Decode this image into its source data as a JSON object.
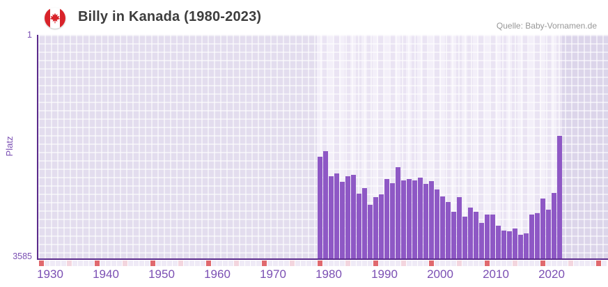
{
  "header": {
    "title": "Billy in Kanada (1980-2023)",
    "source": "Quelle: Baby-Vornamen.de"
  },
  "y_axis": {
    "label": "Platz",
    "top_tick": "1",
    "bottom_tick": "3585"
  },
  "x_axis": {
    "decade_labels": [
      "1930",
      "1940",
      "1950",
      "1960",
      "1970",
      "1980",
      "1990",
      "2000",
      "2010",
      "2020"
    ]
  },
  "colors": {
    "bar": "#8e58c5",
    "axis": "#5b2b8c",
    "axis_text": "#7b4fb3",
    "title_text": "#3d3d3d",
    "source_text": "#979797",
    "bg_default": "#e3ddee",
    "bg_data_light": "#f3eff9",
    "bg_data_dark": "#eae4f3",
    "bg_future": "#dcd5ea",
    "tick_decade": "#e0696e",
    "tick_half_decade": "#f3d5de",
    "tick_year": "#efeaf6",
    "flag_red": "#d8232a"
  },
  "chart_data": {
    "type": "bar",
    "title": "Billy in Kanada (1980-2023)",
    "xlabel": "",
    "ylabel": "Platz",
    "y_inverted": true,
    "ylim": [
      1,
      3585
    ],
    "x_drawn_range": [
      1930,
      2031
    ],
    "highlight_period": [
      1980,
      2023
    ],
    "grid": true,
    "legend_position": "none",
    "categories": [
      1980,
      1981,
      1982,
      1983,
      1984,
      1985,
      1986,
      1987,
      1988,
      1989,
      1990,
      1991,
      1992,
      1993,
      1994,
      1995,
      1996,
      1997,
      1998,
      1999,
      2000,
      2001,
      2002,
      2003,
      2004,
      2005,
      2006,
      2007,
      2008,
      2009,
      2010,
      2011,
      2012,
      2013,
      2014,
      2015,
      2016,
      2017,
      2018,
      2019,
      2020,
      2021,
      2022,
      2023
    ],
    "values": [
      1955,
      1866,
      2268,
      2223,
      2357,
      2268,
      2245,
      2547,
      2457,
      2725,
      2602,
      2558,
      2312,
      2379,
      2123,
      2335,
      2312,
      2335,
      2290,
      2390,
      2346,
      2480,
      2592,
      2681,
      2837,
      2602,
      2915,
      2770,
      2837,
      3016,
      2882,
      2882,
      3060,
      3138,
      3150,
      3105,
      3205,
      3183,
      2882,
      2859,
      2624,
      2803,
      2536,
      1620
    ]
  }
}
